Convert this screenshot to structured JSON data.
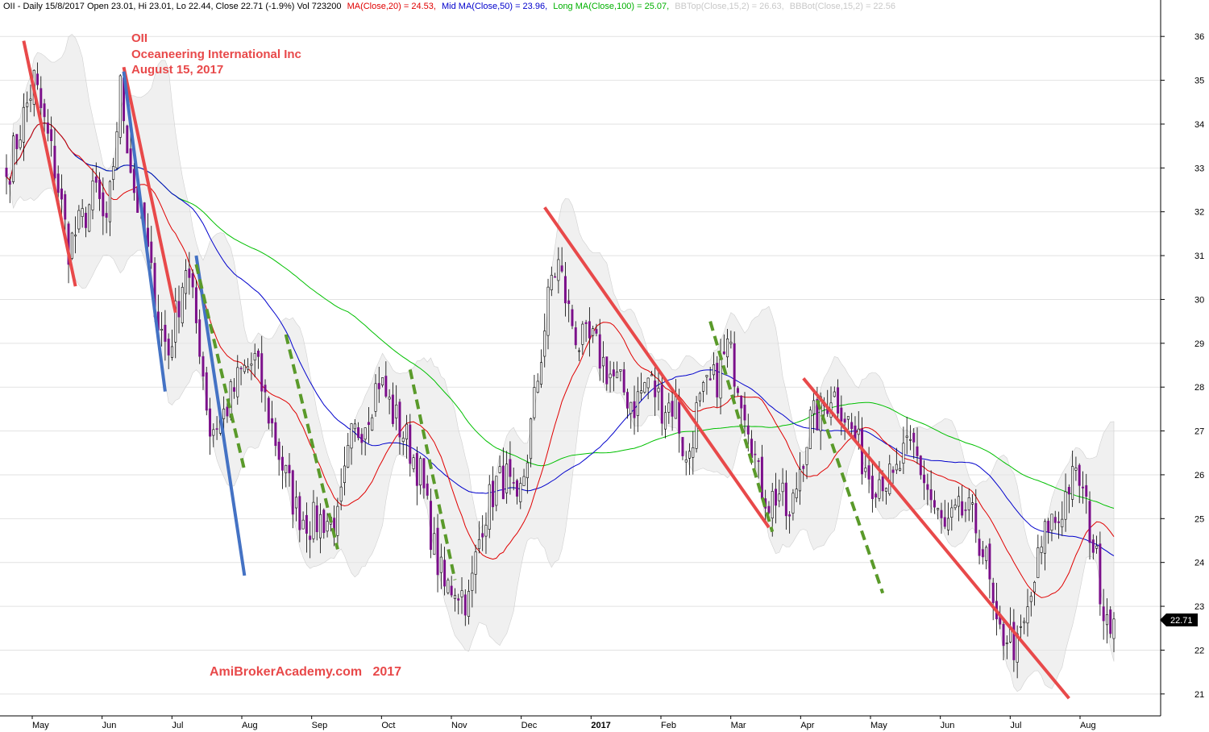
{
  "chart_data": {
    "type": "candlestick",
    "header": {
      "title": "OII - Daily 15/8/2017 Open 23.01, Hi 23.01, Lo 22.44, Close 22.71 (-1.9%) Vol 723200",
      "ma20_text": "MA(Close,20) = 24.53,",
      "ma50_text": "Mid MA(Close,50) = 23.96,",
      "ma100_text": "Long MA(Close,100) = 25.07,",
      "bbtop_text": "BBTop(Close,15,2) = 26.63,",
      "bbbot_text": "BBBot(Close,15,2) = 22.56"
    },
    "annotations": {
      "ticker": "OII",
      "company": "Oceaneering International Inc",
      "date": "August 15, 2017",
      "watermark": "AmiBrokerAcademy.com   2017"
    },
    "last_price_label": "22.71",
    "ylim": [
      20.5,
      36.5
    ],
    "y_ticks": [
      21,
      22,
      23,
      24,
      25,
      26,
      27,
      28,
      29,
      30,
      31,
      32,
      33,
      34,
      35,
      36
    ],
    "x_labels": [
      "May",
      "Jun",
      "Jul",
      "Aug",
      "Sep",
      "Oct",
      "Nov",
      "Dec",
      "2017",
      "Feb",
      "Mar",
      "Apr",
      "May",
      "Jun",
      "Jul",
      "Aug"
    ],
    "colors": {
      "up_candle": "#ffffff",
      "down_candle": "#7b0f8a",
      "ma20": "#e00000",
      "ma50": "#0000cc",
      "ma100": "#00c000",
      "bb_band": "#e6e6e6",
      "trend_red": "#e8494a",
      "trend_blue": "#4472c4",
      "trend_green": "#5a9a2a"
    },
    "anchors": [
      [
        0,
        32.8
      ],
      [
        8,
        35.0
      ],
      [
        14,
        33.0
      ],
      [
        18,
        31.2
      ],
      [
        22,
        31.8
      ],
      [
        26,
        32.5
      ],
      [
        29,
        31.5
      ],
      [
        33,
        34.8
      ],
      [
        37,
        32.5
      ],
      [
        40,
        31.5
      ],
      [
        44,
        29.5
      ],
      [
        47,
        28.8
      ],
      [
        52,
        30.8
      ],
      [
        56,
        29.0
      ],
      [
        59,
        27.0
      ],
      [
        63,
        27.4
      ],
      [
        68,
        28.3
      ],
      [
        72,
        28.6
      ],
      [
        76,
        27.4
      ],
      [
        80,
        26.2
      ],
      [
        84,
        25.2
      ],
      [
        88,
        24.9
      ],
      [
        92,
        25.0
      ],
      [
        96,
        24.9
      ],
      [
        100,
        26.8
      ],
      [
        104,
        27.3
      ],
      [
        108,
        28.2
      ],
      [
        112,
        27.4
      ],
      [
        116,
        26.8
      ],
      [
        120,
        26.0
      ],
      [
        124,
        24.3
      ],
      [
        127,
        23.4
      ],
      [
        130,
        23.5
      ],
      [
        134,
        23.1
      ],
      [
        138,
        25.0
      ],
      [
        142,
        25.8
      ],
      [
        145,
        25.9
      ],
      [
        148,
        25.1
      ],
      [
        151,
        26.5
      ],
      [
        155,
        28.8
      ],
      [
        158,
        30.5
      ],
      [
        160,
        30.8
      ],
      [
        163,
        29.7
      ],
      [
        166,
        29.0
      ],
      [
        170,
        29.0
      ],
      [
        174,
        28.4
      ],
      [
        178,
        28.0
      ],
      [
        182,
        27.6
      ],
      [
        186,
        28.2
      ],
      [
        190,
        27.6
      ],
      [
        194,
        27.6
      ],
      [
        197,
        26.2
      ],
      [
        200,
        27.4
      ],
      [
        203,
        27.9
      ],
      [
        206,
        28.2
      ],
      [
        209,
        28.9
      ],
      [
        212,
        28.2
      ],
      [
        215,
        27.3
      ],
      [
        218,
        25.9
      ],
      [
        221,
        25.4
      ],
      [
        224,
        25.6
      ],
      [
        227,
        24.9
      ],
      [
        230,
        26.2
      ],
      [
        233,
        27.2
      ],
      [
        236,
        27.4
      ],
      [
        239,
        27.9
      ],
      [
        242,
        27.6
      ],
      [
        245,
        27.0
      ],
      [
        248,
        26.4
      ],
      [
        251,
        25.9
      ],
      [
        254,
        26.0
      ],
      [
        257,
        25.8
      ],
      [
        260,
        26.4
      ],
      [
        263,
        26.6
      ],
      [
        266,
        25.9
      ],
      [
        269,
        25.2
      ],
      [
        272,
        24.7
      ],
      [
        275,
        25.0
      ],
      [
        278,
        25.2
      ],
      [
        281,
        24.8
      ],
      [
        284,
        24.0
      ],
      [
        287,
        22.3
      ],
      [
        290,
        22.4
      ],
      [
        293,
        22.0
      ],
      [
        296,
        22.8
      ],
      [
        299,
        24.0
      ],
      [
        302,
        24.9
      ],
      [
        305,
        25.0
      ],
      [
        308,
        25.8
      ],
      [
        311,
        25.9
      ],
      [
        314,
        24.8
      ],
      [
        316,
        24.0
      ],
      [
        318,
        23.0
      ],
      [
        321,
        22.71
      ]
    ],
    "trendlines": [
      {
        "style": "solid",
        "color": "trend_red",
        "from": [
          5,
          35.9
        ],
        "to": [
          20,
          30.3
        ]
      },
      {
        "style": "solid",
        "color": "trend_red",
        "from": [
          34,
          35.3
        ],
        "to": [
          49,
          29.7
        ]
      },
      {
        "style": "solid",
        "color": "trend_blue",
        "from": [
          34,
          35.2
        ],
        "to": [
          46,
          27.9
        ]
      },
      {
        "style": "solid",
        "color": "trend_blue",
        "from": [
          55,
          31.0
        ],
        "to": [
          69,
          23.7
        ]
      },
      {
        "style": "dashed",
        "color": "trend_green",
        "from": [
          55,
          30.8
        ],
        "to": [
          69,
          26.1
        ]
      },
      {
        "style": "dashed",
        "color": "trend_green",
        "from": [
          81,
          29.2
        ],
        "to": [
          96,
          24.3
        ]
      },
      {
        "style": "dashed",
        "color": "trend_green",
        "from": [
          117,
          28.4
        ],
        "to": [
          130,
          23.6
        ]
      },
      {
        "style": "solid",
        "color": "trend_red",
        "from": [
          156,
          32.1
        ],
        "to": [
          221,
          24.8
        ]
      },
      {
        "style": "dashed",
        "color": "trend_green",
        "from": [
          204,
          29.5
        ],
        "to": [
          222,
          24.7
        ]
      },
      {
        "style": "solid",
        "color": "trend_red",
        "from": [
          231,
          28.2
        ],
        "to": [
          308,
          20.9
        ]
      },
      {
        "style": "dashed",
        "color": "trend_green",
        "from": [
          235,
          27.7
        ],
        "to": [
          254,
          23.3
        ]
      }
    ]
  }
}
